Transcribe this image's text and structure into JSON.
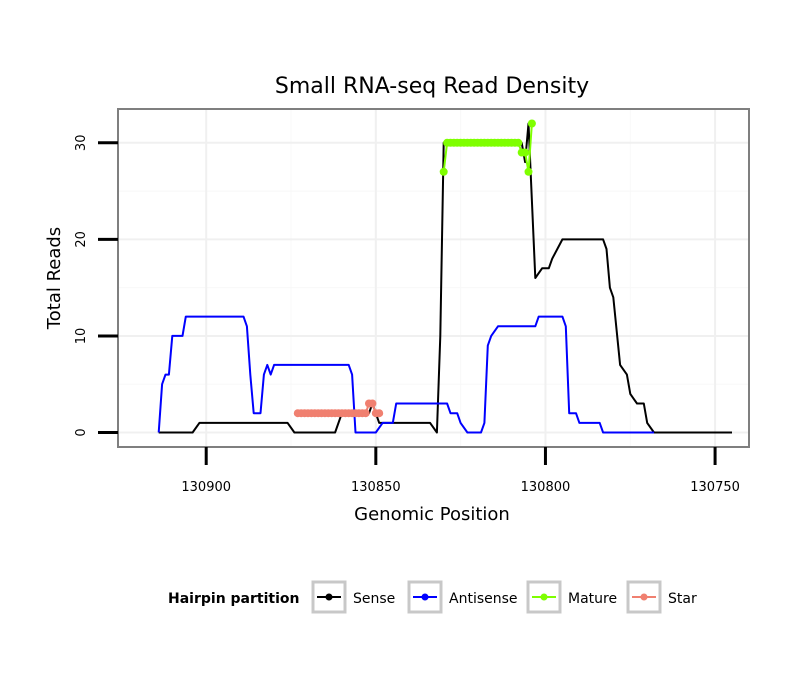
{
  "chart_data": {
    "type": "line",
    "title": "Small RNA-seq Read Density",
    "xlabel": "Genomic Position",
    "ylabel": "Total Reads",
    "x_reversed": true,
    "xlim": [
      130926,
      130740
    ],
    "ylim": [
      -1.5,
      33.5
    ],
    "xticks": [
      130900,
      130850,
      130800,
      130750
    ],
    "xtick_labels": [
      "130900",
      "130850",
      "130800",
      "130750"
    ],
    "yticks": [
      0,
      10,
      20,
      30
    ],
    "ytick_labels": [
      "0",
      "10",
      "20",
      "30"
    ],
    "grid": true,
    "legend": {
      "title": "Hairpin partition",
      "position": "bottom",
      "entries": [
        "Sense",
        "Antisense",
        "Mature",
        "Star"
      ]
    },
    "series": [
      {
        "name": "Sense",
        "color": "#000000",
        "markers": false,
        "points": [
          [
            130914,
            0
          ],
          [
            130904,
            0
          ],
          [
            130902,
            1
          ],
          [
            130876,
            1
          ],
          [
            130874,
            0
          ],
          [
            130862,
            0
          ],
          [
            130860,
            2
          ],
          [
            130852,
            2
          ],
          [
            130851,
            3
          ],
          [
            130849,
            1
          ],
          [
            130834,
            1
          ],
          [
            130832,
            0
          ],
          [
            130831,
            10
          ],
          [
            130830,
            30
          ],
          [
            130807,
            30
          ],
          [
            130806,
            28
          ],
          [
            130805,
            32
          ],
          [
            130803,
            16
          ],
          [
            130801,
            17
          ],
          [
            130799,
            17
          ],
          [
            130798,
            18
          ],
          [
            130795,
            20
          ],
          [
            130783,
            20
          ],
          [
            130782,
            19
          ],
          [
            130781,
            15
          ],
          [
            130780,
            14
          ],
          [
            130778,
            7
          ],
          [
            130776,
            6
          ],
          [
            130775,
            4
          ],
          [
            130773,
            3
          ],
          [
            130771,
            3
          ],
          [
            130770,
            1
          ],
          [
            130768,
            0
          ],
          [
            130745,
            0
          ]
        ]
      },
      {
        "name": "Antisense",
        "color": "#0000ff",
        "markers": false,
        "points": [
          [
            130914,
            0
          ],
          [
            130913,
            5
          ],
          [
            130912,
            6
          ],
          [
            130911,
            6
          ],
          [
            130910,
            10
          ],
          [
            130907,
            10
          ],
          [
            130906,
            12
          ],
          [
            130889,
            12
          ],
          [
            130888,
            11
          ],
          [
            130887,
            6
          ],
          [
            130886,
            2
          ],
          [
            130884,
            2
          ],
          [
            130883,
            6
          ],
          [
            130882,
            7
          ],
          [
            130881,
            6
          ],
          [
            130880,
            7
          ],
          [
            130858,
            7
          ],
          [
            130857,
            6
          ],
          [
            130856,
            0
          ],
          [
            130850,
            0
          ],
          [
            130848,
            1
          ],
          [
            130845,
            1
          ],
          [
            130844,
            3
          ],
          [
            130829,
            3
          ],
          [
            130828,
            2
          ],
          [
            130826,
            2
          ],
          [
            130825,
            1
          ],
          [
            130823,
            0
          ],
          [
            130819,
            0
          ],
          [
            130818,
            1
          ],
          [
            130817,
            9
          ],
          [
            130816,
            10
          ],
          [
            130814,
            11
          ],
          [
            130803,
            11
          ],
          [
            130802,
            12
          ],
          [
            130795,
            12
          ],
          [
            130794,
            11
          ],
          [
            130793,
            2
          ],
          [
            130791,
            2
          ],
          [
            130790,
            1
          ],
          [
            130784,
            1
          ],
          [
            130783,
            0
          ],
          [
            130768,
            0
          ]
        ]
      },
      {
        "name": "Mature",
        "color": "#7fff00",
        "markers": true,
        "points": [
          [
            130830,
            27
          ],
          [
            130829,
            30
          ],
          [
            130828,
            30
          ],
          [
            130827,
            30
          ],
          [
            130826,
            30
          ],
          [
            130825,
            30
          ],
          [
            130824,
            30
          ],
          [
            130823,
            30
          ],
          [
            130822,
            30
          ],
          [
            130821,
            30
          ],
          [
            130820,
            30
          ],
          [
            130819,
            30
          ],
          [
            130818,
            30
          ],
          [
            130817,
            30
          ],
          [
            130816,
            30
          ],
          [
            130815,
            30
          ],
          [
            130814,
            30
          ],
          [
            130813,
            30
          ],
          [
            130812,
            30
          ],
          [
            130811,
            30
          ],
          [
            130810,
            30
          ],
          [
            130809,
            30
          ],
          [
            130808,
            30
          ],
          [
            130807,
            29
          ],
          [
            130806,
            29
          ],
          [
            130805,
            27
          ],
          [
            130804,
            32
          ]
        ]
      },
      {
        "name": "Star",
        "color": "#f08070",
        "markers": true,
        "points": [
          [
            130873,
            2
          ],
          [
            130872,
            2
          ],
          [
            130871,
            2
          ],
          [
            130870,
            2
          ],
          [
            130869,
            2
          ],
          [
            130868,
            2
          ],
          [
            130867,
            2
          ],
          [
            130866,
            2
          ],
          [
            130865,
            2
          ],
          [
            130864,
            2
          ],
          [
            130863,
            2
          ],
          [
            130862,
            2
          ],
          [
            130861,
            2
          ],
          [
            130860,
            2
          ],
          [
            130859,
            2
          ],
          [
            130858,
            2
          ],
          [
            130857,
            2
          ],
          [
            130856,
            2
          ],
          [
            130855,
            2
          ],
          [
            130854,
            2
          ],
          [
            130853,
            2
          ],
          [
            130852,
            3
          ],
          [
            130851,
            3
          ],
          [
            130850,
            2
          ],
          [
            130849,
            2
          ]
        ]
      }
    ]
  }
}
